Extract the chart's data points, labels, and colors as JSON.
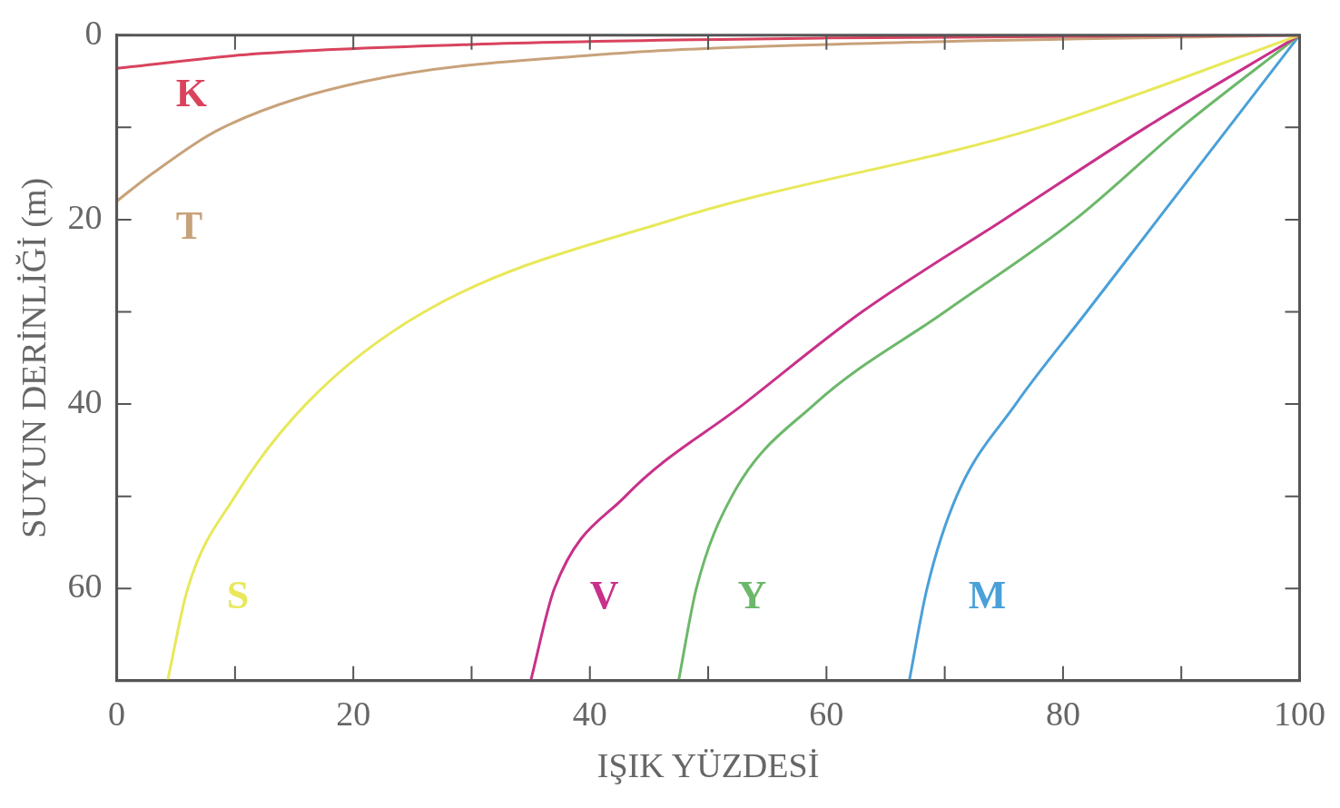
{
  "chart_data": {
    "type": "line",
    "xlabel": "IŞIK YÜZDESİ",
    "ylabel": "SUYUN DERİNLİĞİ (m)",
    "xlim": [
      0,
      100
    ],
    "ylim": [
      70,
      0
    ],
    "xticks": [
      0,
      {
        "value": 10,
        "label": null
      },
      20,
      {
        "value": 30,
        "label": null
      },
      40,
      {
        "value": 50,
        "label": null
      },
      60,
      {
        "value": 70,
        "label": null
      },
      80,
      {
        "value": 90,
        "label": null
      },
      100
    ],
    "yticks": [
      0,
      {
        "value": 10,
        "label": null
      },
      20,
      {
        "value": 30,
        "label": null
      },
      40,
      {
        "value": 50,
        "label": null
      },
      60,
      {
        "value": 70,
        "label": null
      }
    ],
    "series": [
      {
        "name": "K",
        "color": "#d9435e",
        "x": [
          100,
          60,
          30,
          12,
          0
        ],
        "values": [
          0,
          0.3,
          1,
          2,
          3.6
        ]
      },
      {
        "name": "T",
        "color": "#c8a27a",
        "x": [
          100,
          60,
          42,
          21,
          9,
          3,
          0
        ],
        "values": [
          0,
          1,
          2,
          5,
          10,
          15,
          18
        ]
      },
      {
        "name": "S",
        "color": "#e8e85a",
        "x": [
          100,
          78,
          47,
          26,
          16,
          10,
          6,
          4.3
        ],
        "values": [
          0,
          10,
          20,
          30,
          40,
          50,
          60,
          70
        ]
      },
      {
        "name": "V",
        "color": "#c8318a",
        "x": [
          100,
          87,
          75,
          63,
          53,
          43,
          37,
          35
        ],
        "values": [
          0,
          10,
          20,
          30,
          40,
          50,
          60,
          70
        ]
      },
      {
        "name": "Y",
        "color": "#6cb86a",
        "x": [
          100,
          90,
          81,
          70,
          59,
          52,
          49,
          47.5
        ],
        "values": [
          0,
          10,
          20,
          30,
          40,
          50,
          60,
          70
        ]
      },
      {
        "name": "M",
        "color": "#4aa0d8",
        "x": [
          100,
          94,
          88,
          82,
          76,
          71,
          68.5,
          67
        ],
        "values": [
          0,
          10,
          20,
          30,
          40,
          50,
          60,
          70
        ]
      }
    ]
  }
}
